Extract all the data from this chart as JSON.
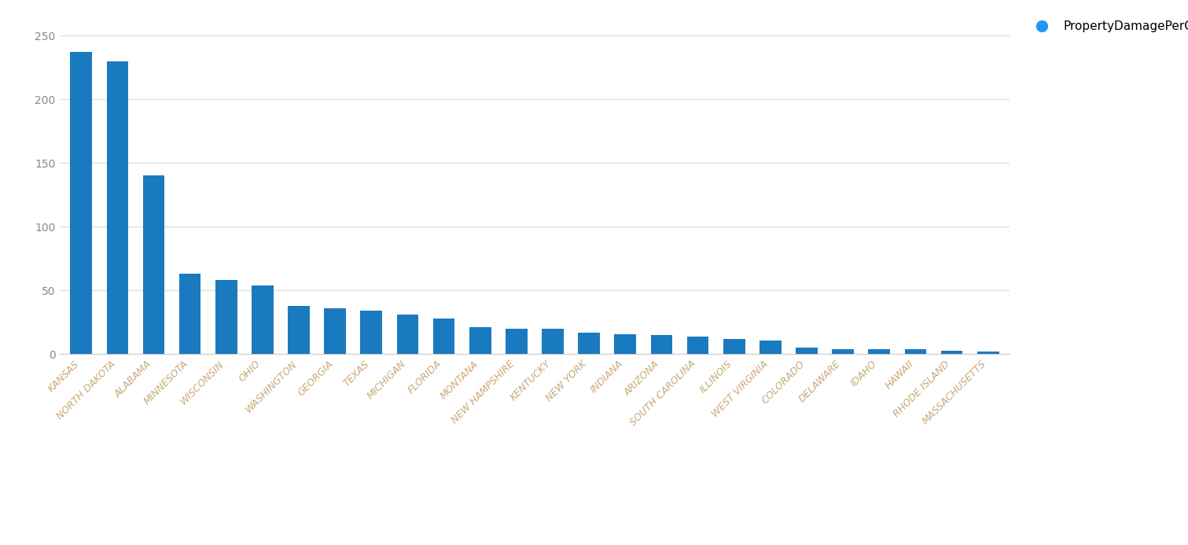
{
  "categories": [
    "KANSAS",
    "NORTH DAKOTA",
    "ALABAMA",
    "MINNESOTA",
    "WISCONSIN",
    "OHIO",
    "WASHINGTON",
    "GEORGIA",
    "TEXAS",
    "MICHIGAN",
    "FLORIDA",
    "MONTANA",
    "NEW HAMPSHIRE",
    "KENTUCKY",
    "NEW YORK",
    "INDIANA",
    "ARIZONA",
    "SOUTH CAROLINA",
    "ILLINOIS",
    "WEST VIRGINIA",
    "COLORADO",
    "DELAWARE",
    "IDAHO",
    "HAWAII",
    "RHODE ISLAND",
    "MASSACHUSETTS"
  ],
  "values": [
    237,
    230,
    140,
    63,
    58,
    54,
    38,
    36,
    34,
    31,
    28,
    21,
    20,
    20,
    17,
    16,
    15,
    14,
    12,
    11,
    5,
    4,
    4,
    4,
    3,
    2
  ],
  "bar_color": "#1a7abf",
  "background_color": "#ffffff",
  "grid_color": "#e0e0e0",
  "yticks": [
    0,
    50,
    100,
    150,
    200,
    250
  ],
  "legend_label": "PropertyDamagePerCapita",
  "legend_color": "#2196F3",
  "ytick_label_color": "#888888",
  "xtick_label_color": "#c8a878",
  "axis_line_color": "#cccccc"
}
